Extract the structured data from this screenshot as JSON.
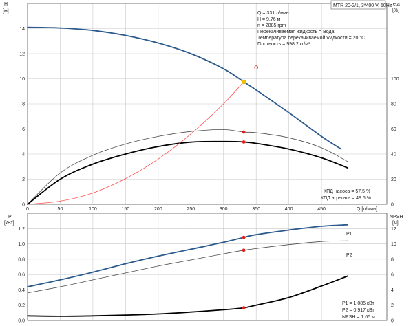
{
  "header": {
    "model": "MTR 20-2/1, 3*400 V, 50Hz"
  },
  "duty_info": [
    "Q = 331 л/мин",
    "H = 9.76 м",
    "n = 2885 rpm",
    "Перекачиваемая жидкость = Вода",
    "Температура перекачиваемой жидкости = 20 °C",
    "Плотность = 998.2 кг/м³"
  ],
  "eff_info": [
    "КПД насоса = 57.5 %",
    "КПД агрегата = 49.6 %"
  ],
  "power_info": [
    "P1 = 1.085 кВт",
    "P2 = 0.917 кВт",
    "NPSH = 1.65 м"
  ],
  "colors": {
    "head": "#2b5a8c",
    "power": "#2b5a8c",
    "efficiency": "#000000",
    "system": "#ff4a4a",
    "duty_point": "#f2c200",
    "marker": "#e02020",
    "grid": "#c8c8c8"
  },
  "chart_data": [
    {
      "type": "line",
      "id": "top",
      "xlabel": "Q [л/мин]",
      "x_ticks": [
        "0",
        "50",
        "100",
        "150",
        "200",
        "250",
        "300",
        "350",
        "400",
        "450"
      ],
      "xlim": [
        0,
        550
      ],
      "left_axis": {
        "label_line1": "H",
        "label_line2": "[м]",
        "ylim": [
          0,
          16
        ],
        "ticks": [
          "0",
          "2",
          "4",
          "6",
          "8",
          "10",
          "12",
          "14"
        ]
      },
      "right_axis": {
        "label_line1": "eta",
        "label_line2": "[%]",
        "ylim": [
          0,
          160
        ],
        "ticks": [
          "0",
          "20",
          "40",
          "60",
          "80",
          "100"
        ]
      },
      "grid": true,
      "series": [
        {
          "key": "head",
          "axis": "left",
          "style": "head",
          "x": [
            0,
            50,
            100,
            150,
            200,
            250,
            300,
            331,
            350,
            400,
            450,
            480
          ],
          "y": [
            14.1,
            14.05,
            13.85,
            13.45,
            12.85,
            12.0,
            10.8,
            9.76,
            9.1,
            7.3,
            5.4,
            4.4
          ]
        },
        {
          "key": "eta_pump",
          "axis": "right",
          "style": "thin",
          "x": [
            0,
            50,
            100,
            150,
            200,
            250,
            300,
            331,
            350,
            400,
            450,
            490
          ],
          "y": [
            0,
            25,
            39,
            48,
            54,
            58,
            59.5,
            57.5,
            57,
            53,
            45,
            34
          ]
        },
        {
          "key": "eta_unit",
          "axis": "right",
          "style": "eff",
          "x": [
            0,
            50,
            100,
            150,
            200,
            250,
            300,
            331,
            350,
            400,
            450,
            490
          ],
          "y": [
            0,
            20,
            32,
            40,
            46,
            49.5,
            50,
            49.6,
            48.5,
            44,
            37,
            29
          ]
        },
        {
          "key": "system",
          "axis": "left",
          "style": "system",
          "x": [
            0,
            50,
            100,
            150,
            200,
            250,
            300,
            331
          ],
          "y": [
            0,
            0.25,
            0.9,
            2.05,
            3.6,
            5.6,
            8.0,
            9.76
          ]
        }
      ],
      "duty_point": {
        "x": 331,
        "y": 9.76,
        "axis": "left"
      },
      "markers": [
        {
          "x": 331,
          "y": 57.5,
          "axis": "right"
        },
        {
          "x": 331,
          "y": 49.6,
          "axis": "right"
        }
      ],
      "open_marker": {
        "x": 350,
        "y": 10.9,
        "axis": "left"
      }
    },
    {
      "type": "line",
      "id": "bottom",
      "xlim": [
        0,
        550
      ],
      "left_axis": {
        "label_line1": "P",
        "label_line2": "[кВт]",
        "ylim": [
          0,
          1.4
        ],
        "ticks": [
          "0.0",
          "0.2",
          "0.4",
          "0.6",
          "0.8",
          "1.0",
          "1.2"
        ]
      },
      "right_axis": {
        "label_line1": "NPSH",
        "label_line2": "[м]",
        "ylim": [
          0,
          14
        ],
        "ticks": [
          "0",
          "2",
          "4",
          "6",
          "8",
          "10",
          "12"
        ]
      },
      "grid": true,
      "series": [
        {
          "key": "P1",
          "name": "P1",
          "axis": "left",
          "style": "head",
          "x": [
            0,
            50,
            100,
            150,
            200,
            250,
            300,
            331,
            350,
            400,
            450,
            490
          ],
          "y": [
            0.44,
            0.53,
            0.63,
            0.74,
            0.84,
            0.93,
            1.02,
            1.085,
            1.12,
            1.18,
            1.23,
            1.25
          ]
        },
        {
          "key": "P2",
          "name": "P2",
          "axis": "left",
          "style": "thin",
          "x": [
            0,
            50,
            100,
            150,
            200,
            250,
            300,
            331,
            350,
            400,
            450,
            490
          ],
          "y": [
            0.36,
            0.44,
            0.53,
            0.62,
            0.71,
            0.79,
            0.87,
            0.917,
            0.94,
            0.99,
            1.03,
            1.04
          ]
        },
        {
          "key": "npsh",
          "axis": "right",
          "style": "eff",
          "x": [
            0,
            50,
            100,
            150,
            200,
            250,
            300,
            331,
            350,
            400,
            450,
            490
          ],
          "y": [
            0.6,
            0.55,
            0.6,
            0.7,
            0.85,
            1.1,
            1.4,
            1.65,
            2.0,
            3.0,
            4.5,
            5.8
          ]
        }
      ],
      "markers": [
        {
          "x": 331,
          "y": 1.085,
          "axis": "left"
        },
        {
          "x": 331,
          "y": 0.917,
          "axis": "left"
        },
        {
          "x": 331,
          "y": 1.65,
          "axis": "right"
        }
      ]
    }
  ]
}
